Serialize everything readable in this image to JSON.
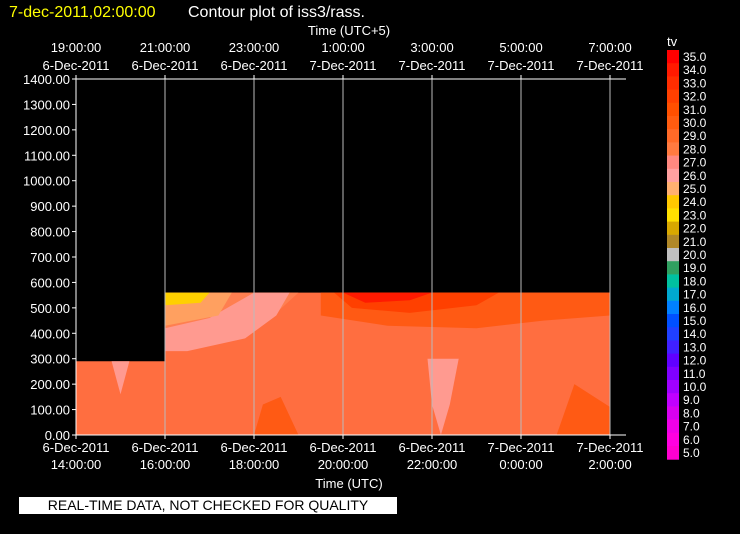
{
  "header": {
    "timestamp": "7-dec-2011,02:00:00",
    "title": "Contour plot of iss3/rass."
  },
  "disclaimer": "REAL-TIME DATA, NOT CHECKED FOR QUALITY",
  "colors": {
    "background": "#000000",
    "timestamp": "#ffff00",
    "text": "#ffffff"
  },
  "chart_data": {
    "type": "heatmap",
    "top_axis_label": "Time (UTC+5)",
    "xlabel": "Time (UTC)",
    "ylabel": "",
    "ylim": [
      0,
      1400
    ],
    "xlim": [
      14,
      26.3
    ],
    "yticks": [
      "0.00",
      "100.00",
      "200.00",
      "300.00",
      "400.00",
      "500.00",
      "600.00",
      "700.00",
      "800.00",
      "900.00",
      "1000.00",
      "1100.00",
      "1200.00",
      "1300.00",
      "1400.00"
    ],
    "bottom_ticks": [
      {
        "x": 14,
        "date": "6-Dec-2011",
        "time": "14:00:00"
      },
      {
        "x": 16,
        "date": "6-Dec-2011",
        "time": "16:00:00"
      },
      {
        "x": 18,
        "date": "6-Dec-2011",
        "time": "18:00:00"
      },
      {
        "x": 20,
        "date": "6-Dec-2011",
        "time": "20:00:00"
      },
      {
        "x": 22,
        "date": "6-Dec-2011",
        "time": "22:00:00"
      },
      {
        "x": 24,
        "date": "7-Dec-2011",
        "time": "0:00:00"
      },
      {
        "x": 26,
        "date": "7-Dec-2011",
        "time": "2:00:00"
      }
    ],
    "top_ticks": [
      {
        "x": 14,
        "time": "19:00:00",
        "date": "6-Dec-2011"
      },
      {
        "x": 16,
        "time": "21:00:00",
        "date": "6-Dec-2011"
      },
      {
        "x": 18,
        "time": "23:00:00",
        "date": "6-Dec-2011"
      },
      {
        "x": 20,
        "time": "1:00:00",
        "date": "7-Dec-2011"
      },
      {
        "x": 22,
        "time": "3:00:00",
        "date": "7-Dec-2011"
      },
      {
        "x": 24,
        "time": "5:00:00",
        "date": "7-Dec-2011"
      },
      {
        "x": 26,
        "time": "7:00:00",
        "date": "7-Dec-2011"
      }
    ],
    "grid": true,
    "colorbar": {
      "label": "tv",
      "levels": [
        "35.0",
        "34.0",
        "33.0",
        "32.0",
        "31.0",
        "30.0",
        "29.0",
        "28.0",
        "27.0",
        "26.0",
        "25.0",
        "24.0",
        "23.0",
        "22.0",
        "21.0",
        "20.0",
        "19.0",
        "18.0",
        "17.0",
        "16.0",
        "15.0",
        "14.0",
        "13.0",
        "12.0",
        "11.0",
        "10.0",
        "9.0",
        "8.0",
        "7.0",
        "6.0",
        "5.0"
      ],
      "colors": [
        "#ff0000",
        "#ff1a00",
        "#ff2d00",
        "#ff4000",
        "#ff5000",
        "#ff5c10",
        "#ff6a28",
        "#ff7a40",
        "#ff8880",
        "#ffa0a0",
        "#ffb070",
        "#ffc800",
        "#ffe000",
        "#d8a800",
        "#b08828",
        "#c0c0c0",
        "#30a060",
        "#00c0a0",
        "#00a8d0",
        "#0080ff",
        "#0050ff",
        "#2040ff",
        "#4020ff",
        "#6000ff",
        "#8000ff",
        "#a000ff",
        "#c000ff",
        "#d800f0",
        "#f000e8",
        "#ff00e0",
        "#ff00d0"
      ]
    },
    "data_extent": [
      {
        "x_start": 14,
        "x_end": 16,
        "y_top": 290
      },
      {
        "x_start": 16,
        "x_end": 26.0,
        "y_top": 560
      }
    ],
    "values_tv": [
      {
        "x": 15,
        "y": 150,
        "tv": 28
      },
      {
        "x": 15,
        "y": 260,
        "tv": 28
      },
      {
        "x": 16.5,
        "y": 520,
        "tv": 23
      },
      {
        "x": 16.5,
        "y": 450,
        "tv": 25
      },
      {
        "x": 17,
        "y": 320,
        "tv": 27
      },
      {
        "x": 18,
        "y": 450,
        "tv": 27
      },
      {
        "x": 19,
        "y": 520,
        "tv": 28
      },
      {
        "x": 20.5,
        "y": 520,
        "tv": 34
      },
      {
        "x": 21.5,
        "y": 500,
        "tv": 32
      },
      {
        "x": 22,
        "y": 200,
        "tv": 27
      },
      {
        "x": 23,
        "y": 450,
        "tv": 30
      },
      {
        "x": 24.5,
        "y": 300,
        "tv": 29
      },
      {
        "x": 25.5,
        "y": 200,
        "tv": 28
      }
    ]
  }
}
